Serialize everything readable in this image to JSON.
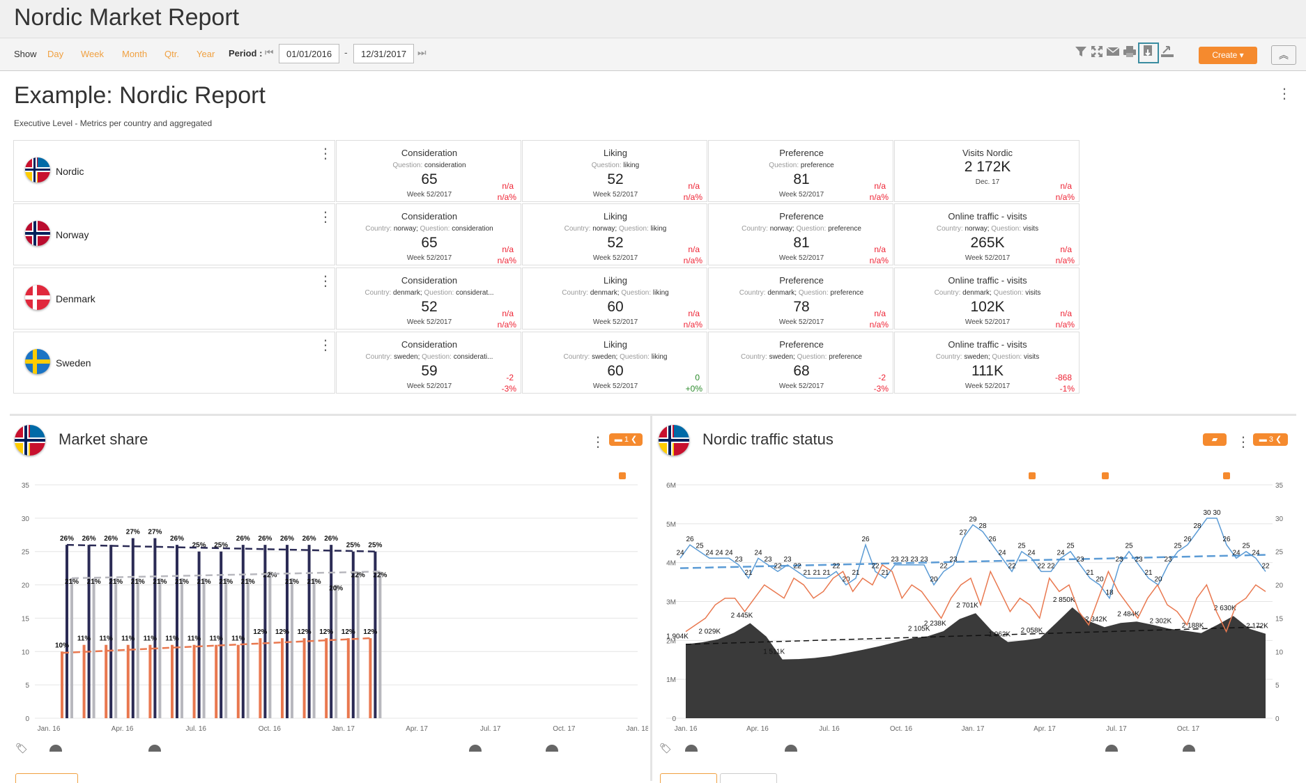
{
  "app": {
    "title": "Nordic Market Report"
  },
  "toolbar": {
    "show_label": "Show",
    "ranges": [
      "Day",
      "Week",
      "Month",
      "Qtr.",
      "Year"
    ],
    "period_label": "Period :",
    "date_from": "01/01/2016",
    "date_separator": "-",
    "date_to": "12/31/2017",
    "icons": [
      "filter-icon",
      "expand-icon",
      "mail-icon",
      "print-icon",
      "export-icon",
      "import-icon"
    ],
    "create_label": "Create ▾",
    "collapse_icon": "chevron-up-icon"
  },
  "report": {
    "title": "Example: Nordic Report",
    "subtitle": "Executive Level - Metrics per country and aggregated"
  },
  "rows": [
    {
      "name": "Nordic",
      "flag": "nordic",
      "cells": [
        {
          "title": "Consideration",
          "qk1": "",
          "qv1": "",
          "qk2": "Question:",
          "qv2": "consideration",
          "value": "65",
          "week": "Week 52/2017",
          "d1": "n/a",
          "d2": "n/a%"
        },
        {
          "title": "Liking",
          "qk1": "",
          "qv1": "",
          "qk2": "Question:",
          "qv2": "liking",
          "value": "52",
          "week": "Week 52/2017",
          "d1": "n/a",
          "d2": "n/a%"
        },
        {
          "title": "Preference",
          "qk1": "",
          "qv1": "",
          "qk2": "Question:",
          "qv2": "preference",
          "value": "81",
          "week": "Week 52/2017",
          "d1": "n/a",
          "d2": "n/a%"
        },
        {
          "title": "Visits Nordic",
          "qk1": "",
          "qv1": "",
          "qk2": "",
          "qv2": "",
          "value": "2 172K",
          "week": "Dec. 17",
          "d1": "n/a",
          "d2": "n/a%"
        }
      ]
    },
    {
      "name": "Norway",
      "flag": "norway",
      "cells": [
        {
          "title": "Consideration",
          "qk1": "Country:",
          "qv1": "norway;",
          "qk2": "Question:",
          "qv2": "consideration",
          "value": "65",
          "week": "Week 52/2017",
          "d1": "n/a",
          "d2": "n/a%"
        },
        {
          "title": "Liking",
          "qk1": "Country:",
          "qv1": "norway;",
          "qk2": "Question:",
          "qv2": "liking",
          "value": "52",
          "week": "Week 52/2017",
          "d1": "n/a",
          "d2": "n/a%"
        },
        {
          "title": "Preference",
          "qk1": "Country:",
          "qv1": "norway;",
          "qk2": "Question:",
          "qv2": "preference",
          "value": "81",
          "week": "Week 52/2017",
          "d1": "n/a",
          "d2": "n/a%"
        },
        {
          "title": "Online traffic - visits",
          "qk1": "Country:",
          "qv1": "norway;",
          "qk2": "Question:",
          "qv2": "visits",
          "value": "265K",
          "week": "Week 52/2017",
          "d1": "n/a",
          "d2": "n/a%"
        }
      ]
    },
    {
      "name": "Denmark",
      "flag": "denmark",
      "cells": [
        {
          "title": "Consideration",
          "qk1": "Country:",
          "qv1": "denmark;",
          "qk2": "Question:",
          "qv2": "considerat...",
          "value": "52",
          "week": "Week 52/2017",
          "d1": "n/a",
          "d2": "n/a%"
        },
        {
          "title": "Liking",
          "qk1": "Country:",
          "qv1": "denmark;",
          "qk2": "Question:",
          "qv2": "liking",
          "value": "60",
          "week": "Week 52/2017",
          "d1": "n/a",
          "d2": "n/a%"
        },
        {
          "title": "Preference",
          "qk1": "Country:",
          "qv1": "denmark;",
          "qk2": "Question:",
          "qv2": "preference",
          "value": "78",
          "week": "Week 52/2017",
          "d1": "n/a",
          "d2": "n/a%"
        },
        {
          "title": "Online traffic - visits",
          "qk1": "Country:",
          "qv1": "denmark;",
          "qk2": "Question:",
          "qv2": "visits",
          "value": "102K",
          "week": "Week 52/2017",
          "d1": "n/a",
          "d2": "n/a%"
        }
      ]
    },
    {
      "name": "Sweden",
      "flag": "sweden",
      "cells": [
        {
          "title": "Consideration",
          "qk1": "Country:",
          "qv1": "sweden;",
          "qk2": "Question:",
          "qv2": "considerati...",
          "value": "59",
          "week": "Week 52/2017",
          "d1": "-2",
          "d2": "-3%",
          "pos": false
        },
        {
          "title": "Liking",
          "qk1": "Country:",
          "qv1": "sweden;",
          "qk2": "Question:",
          "qv2": "liking",
          "value": "60",
          "week": "Week 52/2017",
          "d1": "0",
          "d2": "+0%",
          "pos": true
        },
        {
          "title": "Preference",
          "qk1": "Country:",
          "qv1": "sweden;",
          "qk2": "Question:",
          "qv2": "preference",
          "value": "68",
          "week": "Week 52/2017",
          "d1": "-2",
          "d2": "-3%",
          "pos": false
        },
        {
          "title": "Online traffic - visits",
          "qk1": "Country:",
          "qv1": "sweden;",
          "qk2": "Question:",
          "qv2": "visits",
          "value": "111K",
          "week": "Week 52/2017",
          "d1": "-868",
          "d2": "-1%",
          "pos": false
        }
      ]
    }
  ],
  "panels": {
    "market_share": {
      "title": "Market share",
      "comment_count": "1"
    },
    "traffic": {
      "title": "Nordic traffic status",
      "comment_count": "3"
    }
  },
  "colors": {
    "orange": "#f58a2e",
    "navy": "#2b2b55",
    "gray": "#b8b8be",
    "coral": "#e9784f",
    "blue": "#5b9bd5",
    "dark": "#3a3a3a",
    "red": "#e22"
  },
  "chart_data": [
    {
      "type": "bar",
      "title": "",
      "categories_weeks": 28,
      "x_ticks": [
        "Jan. 16",
        "Apr. 16",
        "Jul. 16",
        "Oct. 16",
        "Jan. 17",
        "Apr. 17",
        "Jul. 17",
        "Oct. 17",
        "Jan. 18"
      ],
      "ylim": [
        0,
        35
      ],
      "y_ticks": [
        0,
        5,
        10,
        15,
        20,
        25,
        30,
        35
      ],
      "series": [
        {
          "color": "#2b2b55",
          "values": [
            26,
            26,
            26,
            27,
            27,
            26,
            25,
            25,
            26,
            26,
            26,
            26,
            26,
            25,
            25
          ],
          "labels": [
            "26%",
            "26%",
            "26%",
            "27%",
            "27%",
            "26%",
            "25%",
            "25%",
            "26%",
            "26%",
            "26%",
            "26%",
            "26%",
            "25%",
            "25%"
          ]
        },
        {
          "color": "#b8b8be",
          "values": [
            21,
            21,
            21,
            21,
            21,
            21,
            21,
            21,
            21,
            22,
            21,
            21,
            20,
            22,
            22
          ],
          "labels": [
            "21%",
            "21%",
            "21%",
            "21%",
            "21%",
            "21%",
            "21%",
            "21%",
            "21%",
            "22%",
            "21%",
            "21%",
            "20%",
            "22%",
            "22%"
          ]
        },
        {
          "color": "#e9784f",
          "values": [
            10,
            11,
            11,
            11,
            11,
            11,
            11,
            11,
            11,
            12,
            12,
            12,
            12,
            12,
            12
          ],
          "labels": [
            "10%",
            "11%",
            "11%",
            "11%",
            "11%",
            "11%",
            "11%",
            "11%",
            "11%",
            "12%",
            "12%",
            "12%",
            "12%",
            "12%",
            "12%"
          ]
        }
      ],
      "grid": true
    },
    {
      "type": "area",
      "title": "",
      "x_ticks": [
        "Jan. 16",
        "Apr. 16",
        "Jul. 16",
        "Oct. 16",
        "Jan. 17",
        "Apr. 17",
        "Jul. 17",
        "Oct. 17"
      ],
      "y_left_ticks": [
        "0",
        "1M",
        "2M",
        "3M",
        "4M",
        "5M",
        "6M"
      ],
      "y_right_ticks": [
        "0",
        "5",
        "10",
        "15",
        "20",
        "25",
        "30",
        "35"
      ],
      "area_labels": [
        "1 904K",
        "2 029K",
        "2 445K",
        "1 511K",
        "2 105K",
        "2 238K",
        "2 701K",
        "1 962K",
        "2 058K",
        "2 850K",
        "2 342K",
        "2 484K",
        "2 302K",
        "2 188K",
        "2 630K",
        "2 172K"
      ],
      "blue_labels": [
        "24",
        "26",
        "25",
        "24",
        "24",
        "24",
        "23",
        "21",
        "24",
        "23",
        "22",
        "23",
        "22",
        "21",
        "21",
        "21",
        "22",
        "20",
        "21",
        "26",
        "22",
        "21",
        "23",
        "23",
        "23",
        "23",
        "20",
        "22",
        "23",
        "27",
        "29",
        "28",
        "26",
        "24",
        "22",
        "25",
        "24",
        "22",
        "22",
        "24",
        "25",
        "23",
        "21",
        "20",
        "18",
        "23",
        "25",
        "23",
        "21",
        "20",
        "23",
        "25",
        "26",
        "28",
        "30",
        "30",
        "26",
        "24",
        "25",
        "24",
        "22"
      ],
      "grid": true
    }
  ]
}
